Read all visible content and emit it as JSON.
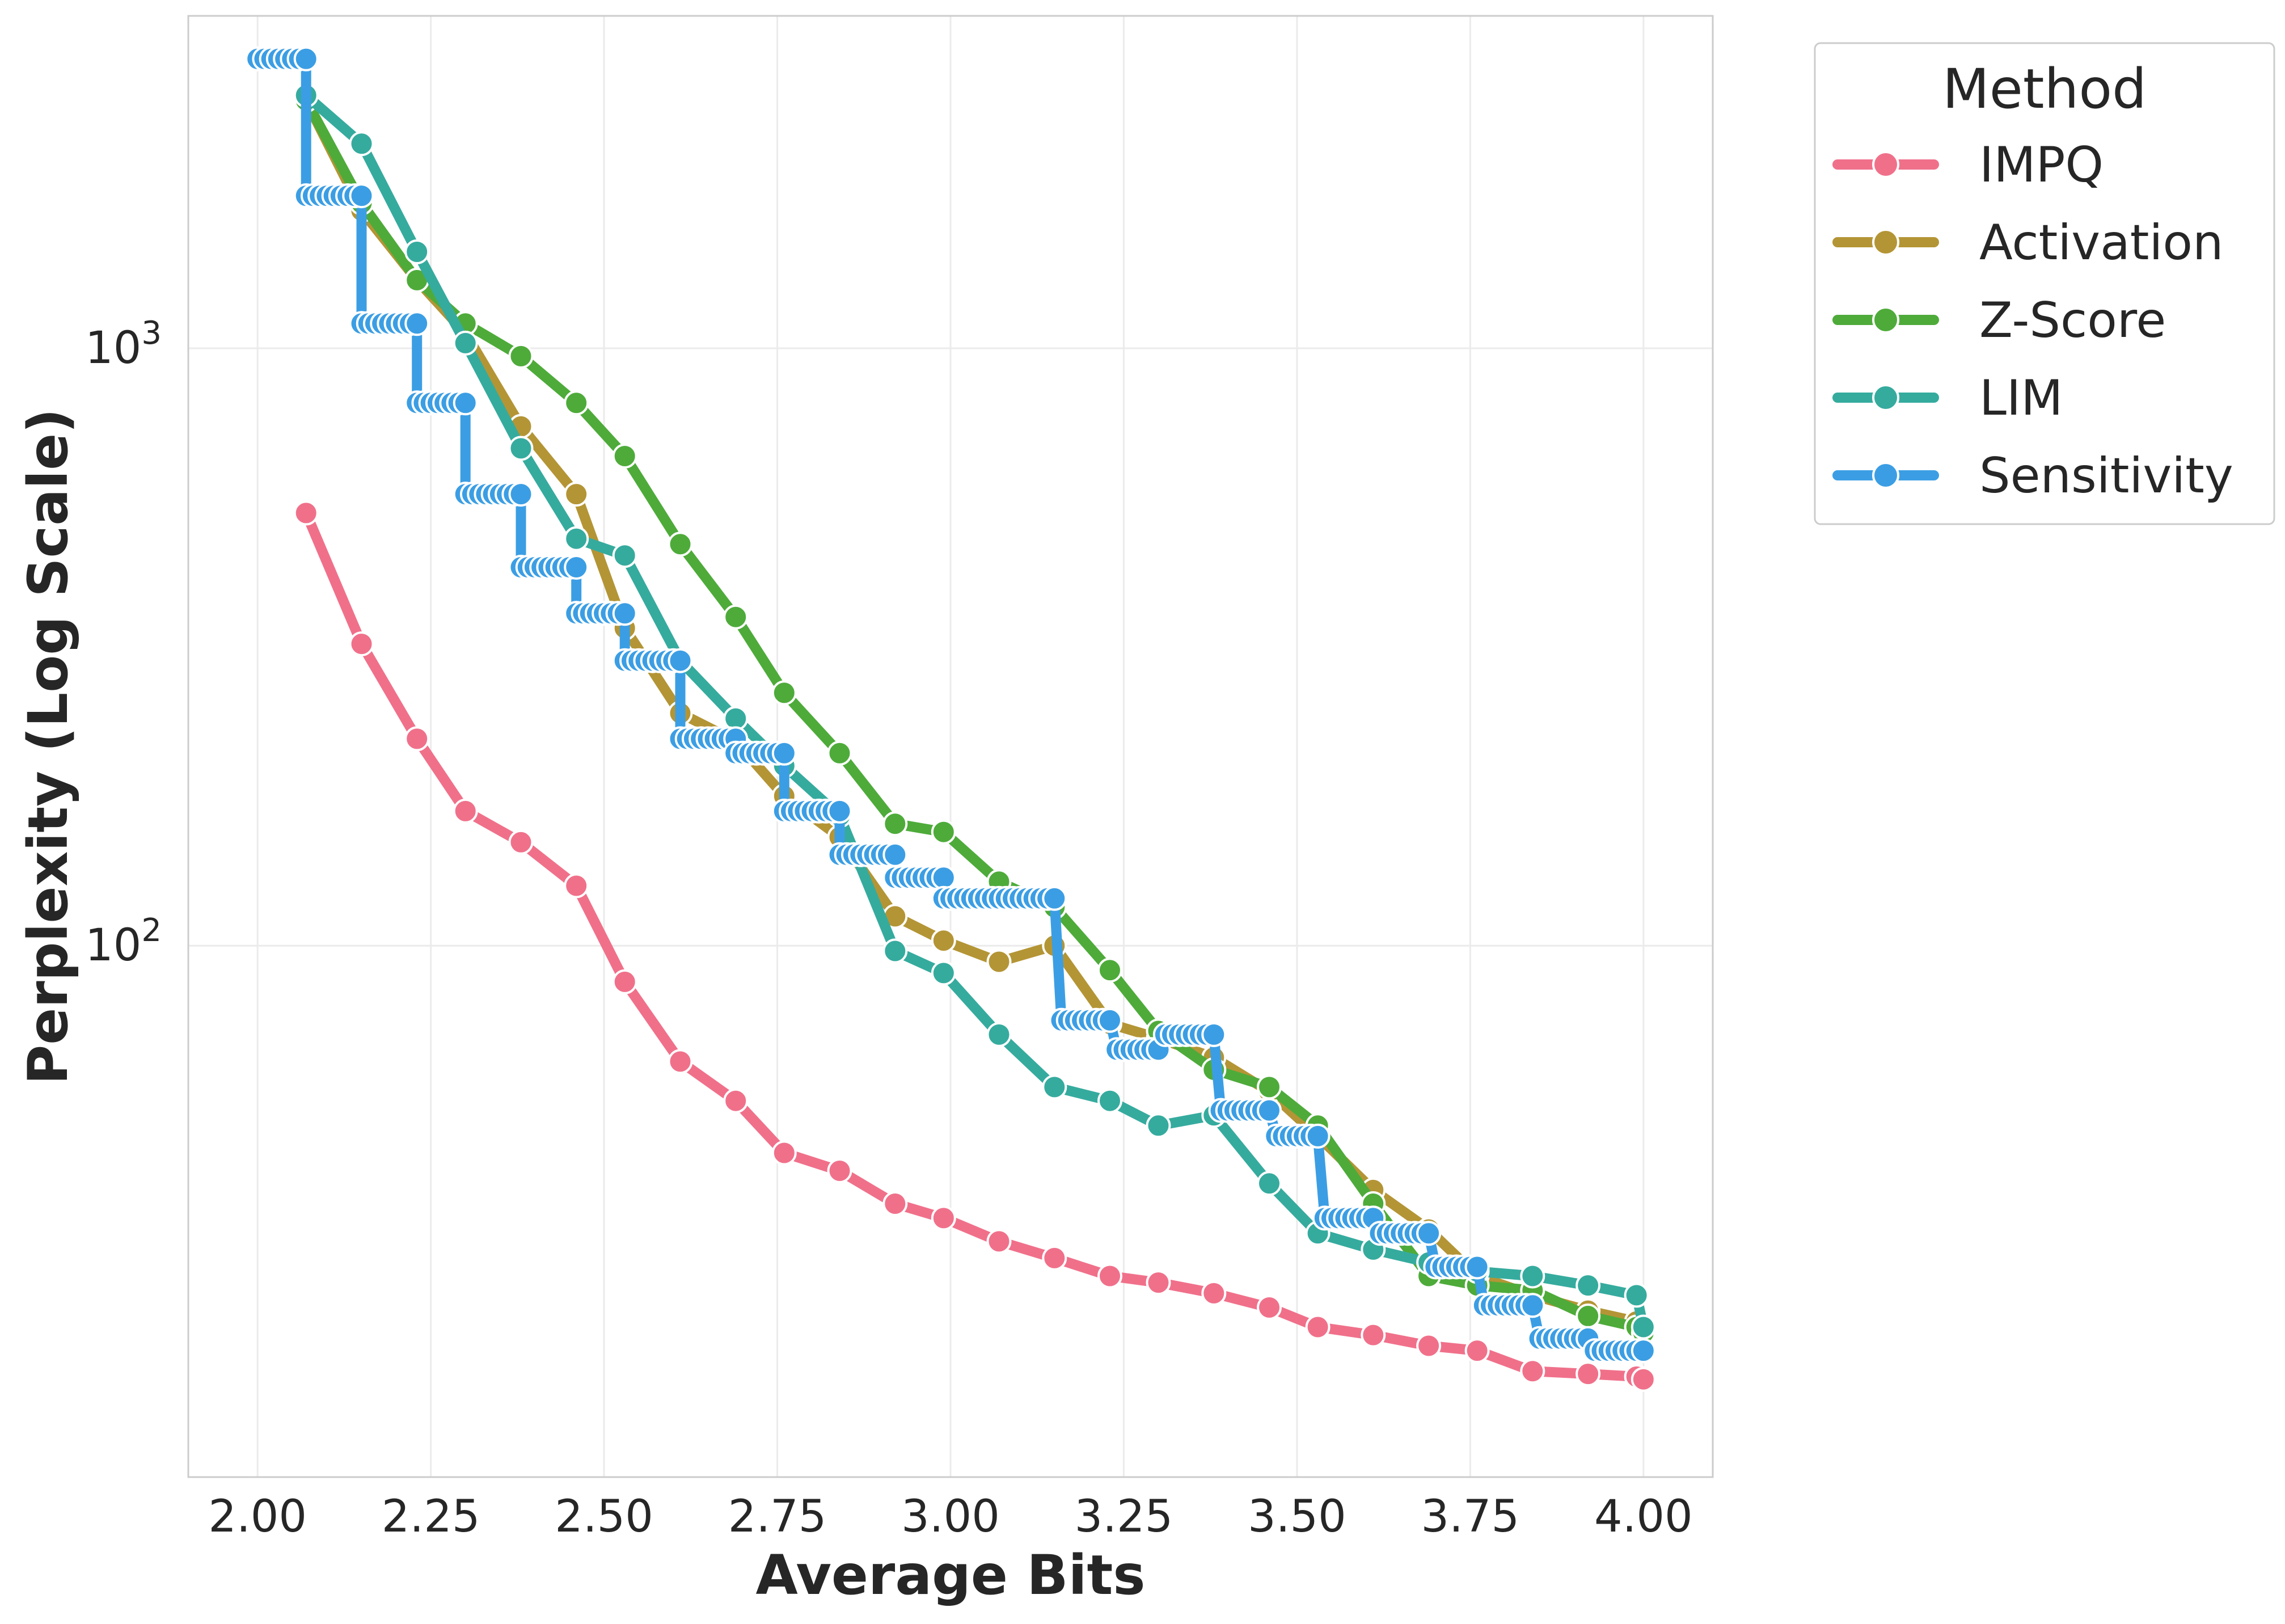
{
  "chart_data": {
    "type": "line",
    "xlabel": "Average Bits",
    "ylabel": "Perplexity (Log Scale)",
    "xlim": [
      1.9,
      4.1
    ],
    "ylim": [
      12.9,
      3600
    ],
    "yscale": "log",
    "grid": true,
    "legend_position": "outside-top-right",
    "x_ticks": [
      "2.00",
      "2.25",
      "2.50",
      "2.75",
      "3.00",
      "3.25",
      "3.50",
      "3.75",
      "4.00"
    ],
    "y_ticks": [
      {
        "value": 100,
        "base": "10",
        "exp": "2"
      },
      {
        "value": 1000,
        "base": "10",
        "exp": "3"
      }
    ],
    "legend": {
      "title": "Method"
    },
    "series": [
      {
        "name": "IMPQ",
        "color": "#f0708a",
        "x": [
          2.07,
          2.15,
          2.23,
          2.3,
          2.38,
          2.46,
          2.53,
          2.61,
          2.69,
          2.76,
          2.84,
          2.92,
          2.99,
          3.07,
          3.15,
          3.23,
          3.3,
          3.38,
          3.46,
          3.53,
          3.61,
          3.69,
          3.76,
          3.84,
          3.92,
          3.99,
          4.0
        ],
        "y": [
          530,
          320,
          222,
          168,
          149,
          126,
          87,
          64,
          55,
          45,
          42,
          37,
          35,
          32,
          30,
          28,
          27.3,
          26.2,
          24.8,
          23,
          22.3,
          21.4,
          21,
          19.4,
          19.2,
          19,
          18.8
        ]
      },
      {
        "name": "Activation",
        "color": "#b49535",
        "x": [
          2.07,
          2.15,
          2.23,
          2.3,
          2.38,
          2.46,
          2.53,
          2.61,
          2.69,
          2.76,
          2.84,
          2.92,
          2.99,
          3.07,
          3.15,
          3.23,
          3.3,
          3.38,
          3.46,
          3.53,
          3.61,
          3.69,
          3.76,
          3.84,
          3.92,
          3.99,
          4.0
        ],
        "y": [
          2600,
          1700,
          1300,
          1060,
          740,
          570,
          340,
          245,
          220,
          178,
          152,
          112,
          102,
          94,
          100,
          74,
          70,
          65,
          57,
          48,
          39,
          33.5,
          28,
          26,
          24.5,
          23.5,
          23
        ]
      },
      {
        "name": "Z-Score",
        "color": "#4eab3a",
        "x": [
          2.07,
          2.15,
          2.23,
          2.3,
          2.38,
          2.46,
          2.53,
          2.61,
          2.69,
          2.76,
          2.84,
          2.92,
          2.99,
          3.07,
          3.15,
          3.23,
          3.3,
          3.38,
          3.46,
          3.53,
          3.61,
          3.69,
          3.76,
          3.84,
          3.92,
          3.99,
          4.0
        ],
        "y": [
          2600,
          1750,
          1300,
          1100,
          970,
          810,
          660,
          470,
          355,
          265,
          210,
          160,
          155,
          128,
          116,
          91,
          72,
          62,
          58,
          50,
          37,
          28,
          27,
          26.5,
          24,
          23,
          22.5
        ]
      },
      {
        "name": "LIM",
        "color": "#35ab9e",
        "x": [
          2.07,
          2.15,
          2.23,
          2.3,
          2.38,
          2.46,
          2.53,
          2.61,
          2.69,
          2.76,
          2.84,
          2.92,
          2.99,
          3.07,
          3.15,
          3.23,
          3.3,
          3.38,
          3.46,
          3.53,
          3.61,
          3.69,
          3.76,
          3.84,
          3.92,
          3.99,
          4.0
        ],
        "y": [
          2650,
          2200,
          1450,
          1020,
          680,
          480,
          450,
          300,
          240,
          200,
          165,
          98,
          90,
          71,
          58,
          55,
          50,
          52,
          40,
          33,
          31,
          29.5,
          28.5,
          28,
          27,
          26,
          23
        ]
      },
      {
        "name": "Sensitivity",
        "color": "#3b9ee4",
        "x": [
          2.0,
          2.01,
          2.02,
          2.03,
          2.04,
          2.05,
          2.06,
          2.07,
          2.07,
          2.08,
          2.09,
          2.1,
          2.11,
          2.12,
          2.13,
          2.14,
          2.15,
          2.15,
          2.16,
          2.17,
          2.18,
          2.19,
          2.2,
          2.21,
          2.22,
          2.23,
          2.23,
          2.24,
          2.25,
          2.26,
          2.27,
          2.28,
          2.29,
          2.3,
          2.3,
          2.31,
          2.32,
          2.33,
          2.34,
          2.35,
          2.36,
          2.37,
          2.38,
          2.38,
          2.39,
          2.4,
          2.41,
          2.42,
          2.43,
          2.44,
          2.45,
          2.46,
          2.46,
          2.47,
          2.48,
          2.49,
          2.5,
          2.51,
          2.52,
          2.53,
          2.53,
          2.54,
          2.55,
          2.56,
          2.57,
          2.58,
          2.59,
          2.6,
          2.61,
          2.61,
          2.62,
          2.63,
          2.64,
          2.65,
          2.66,
          2.67,
          2.68,
          2.69,
          2.69,
          2.7,
          2.71,
          2.72,
          2.73,
          2.74,
          2.75,
          2.76,
          2.76,
          2.77,
          2.78,
          2.79,
          2.8,
          2.81,
          2.82,
          2.83,
          2.84,
          2.84,
          2.85,
          2.86,
          2.87,
          2.88,
          2.89,
          2.9,
          2.91,
          2.92,
          2.92,
          2.93,
          2.94,
          2.95,
          2.96,
          2.97,
          2.98,
          2.99,
          2.99,
          3.0,
          3.01,
          3.02,
          3.03,
          3.04,
          3.05,
          3.06,
          3.07,
          3.08,
          3.09,
          3.1,
          3.11,
          3.12,
          3.13,
          3.14,
          3.15,
          3.16,
          3.17,
          3.18,
          3.19,
          3.2,
          3.21,
          3.22,
          3.23,
          3.23,
          3.24,
          3.25,
          3.26,
          3.27,
          3.28,
          3.29,
          3.3,
          3.3,
          3.31,
          3.32,
          3.33,
          3.34,
          3.35,
          3.36,
          3.37,
          3.38,
          3.38,
          3.39,
          3.4,
          3.41,
          3.42,
          3.43,
          3.44,
          3.45,
          3.46,
          3.46,
          3.47,
          3.48,
          3.49,
          3.5,
          3.51,
          3.52,
          3.53,
          3.53,
          3.54,
          3.55,
          3.56,
          3.57,
          3.58,
          3.59,
          3.6,
          3.61,
          3.61,
          3.62,
          3.63,
          3.64,
          3.65,
          3.66,
          3.67,
          3.68,
          3.69,
          3.69,
          3.7,
          3.71,
          3.72,
          3.73,
          3.74,
          3.75,
          3.76,
          3.76,
          3.77,
          3.78,
          3.79,
          3.8,
          3.81,
          3.82,
          3.83,
          3.84,
          3.84,
          3.85,
          3.86,
          3.87,
          3.88,
          3.89,
          3.9,
          3.91,
          3.92,
          3.92,
          3.93,
          3.94,
          3.95,
          3.96,
          3.97,
          3.98,
          3.99,
          4.0
        ],
        "y": [
          3050,
          3050,
          3050,
          3050,
          3050,
          3050,
          3050,
          3050,
          1800,
          1800,
          1800,
          1800,
          1800,
          1800,
          1800,
          1800,
          1800,
          1100,
          1100,
          1100,
          1100,
          1100,
          1100,
          1100,
          1100,
          1100,
          810,
          810,
          810,
          810,
          810,
          810,
          810,
          810,
          570,
          570,
          570,
          570,
          570,
          570,
          570,
          570,
          570,
          430,
          430,
          430,
          430,
          430,
          430,
          430,
          430,
          430,
          360,
          360,
          360,
          360,
          360,
          360,
          360,
          360,
          300,
          300,
          300,
          300,
          300,
          300,
          300,
          300,
          300,
          222,
          222,
          222,
          222,
          222,
          222,
          222,
          222,
          222,
          210,
          210,
          210,
          210,
          210,
          210,
          210,
          210,
          168,
          168,
          168,
          168,
          168,
          168,
          168,
          168,
          168,
          142,
          142,
          142,
          142,
          142,
          142,
          142,
          142,
          142,
          130,
          130,
          130,
          130,
          130,
          130,
          130,
          130,
          120,
          120,
          120,
          120,
          120,
          120,
          120,
          120,
          120,
          120,
          120,
          120,
          120,
          120,
          120,
          120,
          120,
          75,
          75,
          75,
          75,
          75,
          75,
          75,
          75,
          75,
          67,
          67,
          67,
          67,
          67,
          67,
          67,
          67,
          71,
          71,
          71,
          71,
          71,
          71,
          71,
          71,
          71,
          53,
          53,
          53,
          53,
          53,
          53,
          53,
          53,
          53,
          48,
          48,
          48,
          48,
          48,
          48,
          48,
          48,
          35,
          35,
          35,
          35,
          35,
          35,
          35,
          35,
          35,
          33,
          33,
          33,
          33,
          33,
          33,
          33,
          33,
          33,
          29,
          29,
          29,
          29,
          29,
          29,
          29,
          29,
          25,
          25,
          25,
          25,
          25,
          25,
          25,
          25,
          25,
          22,
          22,
          22,
          22,
          22,
          22,
          22,
          22,
          22,
          21,
          21,
          21,
          21,
          21,
          21,
          21,
          21
        ]
      }
    ]
  }
}
